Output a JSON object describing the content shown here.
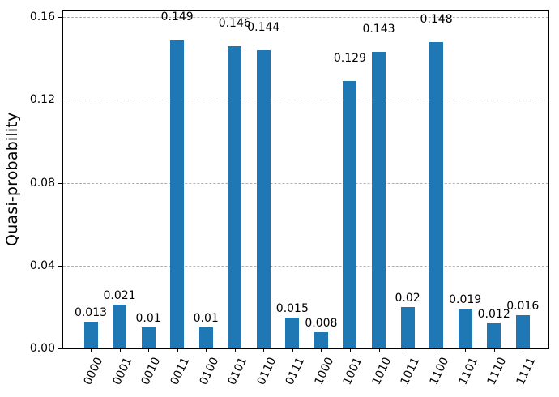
{
  "figure": {
    "background": "#ffffff",
    "axis_color": "#000000"
  },
  "chart_data": {
    "type": "bar",
    "title": "",
    "xlabel": "",
    "ylabel": "Quasi-probability",
    "categories": [
      "0000",
      "0001",
      "0010",
      "0011",
      "0100",
      "0101",
      "0110",
      "0111",
      "1000",
      "1001",
      "1010",
      "1011",
      "1100",
      "1101",
      "1110",
      "1111"
    ],
    "values": [
      0.013,
      0.021,
      0.01,
      0.149,
      0.01,
      0.146,
      0.144,
      0.015,
      0.008,
      0.129,
      0.143,
      0.02,
      0.148,
      0.019,
      0.012,
      0.016
    ],
    "bar_labels": [
      "0.013",
      "0.021",
      "0.01",
      "0.149",
      "0.01",
      "0.146",
      "0.144",
      "0.015",
      "0.008",
      "0.129",
      "0.143",
      "0.02",
      "0.148",
      "0.019",
      "0.012",
      "0.016"
    ],
    "ylim": [
      0,
      0.16
    ],
    "yticks": [
      0,
      0.04,
      0.08,
      0.12,
      0.16
    ],
    "ytick_labels": [
      "0.00",
      "0.04",
      "0.08",
      "0.12",
      "0.16"
    ],
    "bar_color": "#1f77b4",
    "grid": {
      "axis": "y",
      "style": "dashed",
      "color": "#b0b0b0",
      "visible": true
    },
    "legend_position": "none"
  }
}
